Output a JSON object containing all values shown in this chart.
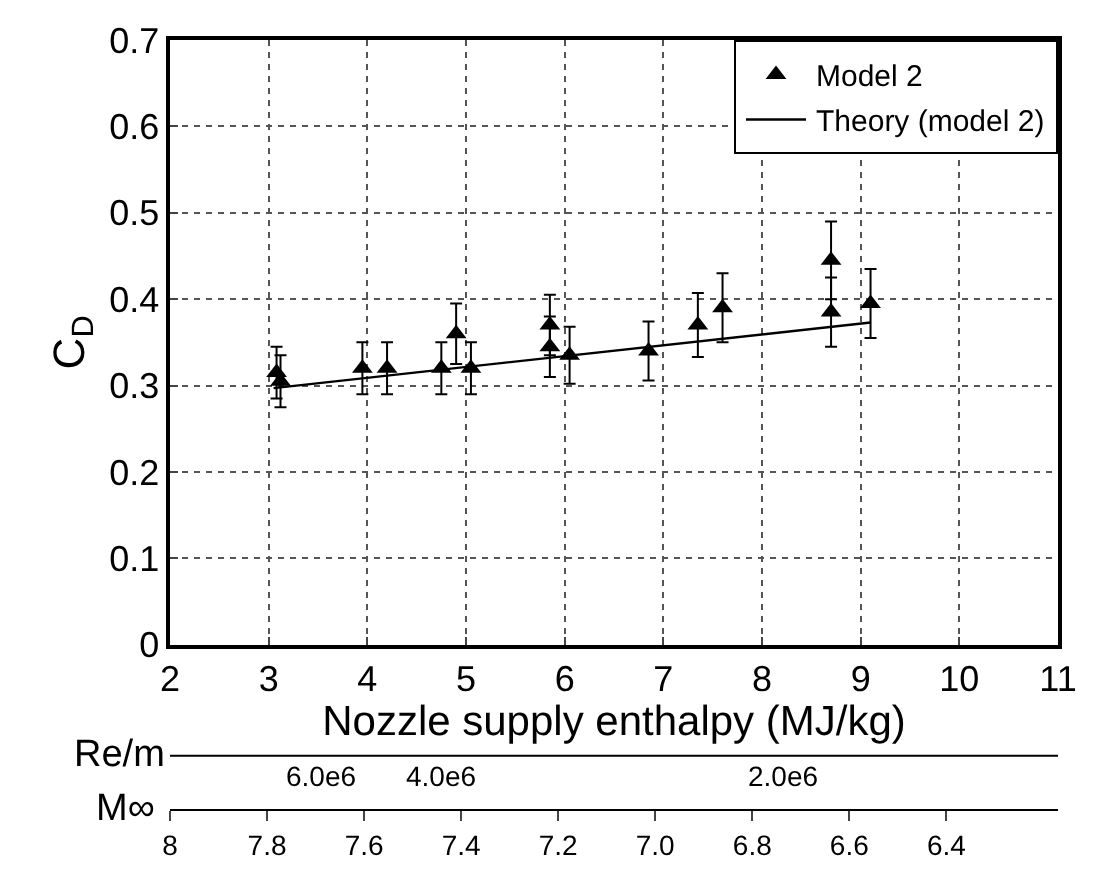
{
  "chart_data": {
    "type": "scatter",
    "xlabel": "Nozzle supply enthalpy (MJ/kg)",
    "ylabel": "C$_{D}$",
    "xlim": [
      2,
      11
    ],
    "xticks": [
      2,
      3,
      4,
      5,
      6,
      7,
      8,
      9,
      10,
      11
    ],
    "ylim": [
      0,
      0.7
    ],
    "yticks": [
      0,
      0.1,
      0.2,
      0.3,
      0.4,
      0.5,
      0.6,
      0.7
    ],
    "x2label": "M∞",
    "x2lim": [
      8.0,
      6.17
    ],
    "x2ticks": [
      8,
      7.8,
      7.6,
      7.4,
      7.2,
      {
        "value": 7.0,
        "label": "7.0"
      },
      6.8,
      6.6,
      6.4
    ],
    "annotations": [
      "Re/m",
      "6.0e6",
      "4.0e6",
      "2.0e6"
    ],
    "grid": true,
    "legend": "top right",
    "marker": "triangle",
    "series": [
      {
        "name": "Model 2",
        "color": "#000000",
        "x": [
          3.08,
          3.12,
          3.95,
          4.2,
          4.75,
          4.9,
          5.05,
          5.85,
          5.85,
          6.05,
          6.85,
          7.35,
          7.6,
          8.7,
          8.7,
          9.1
        ],
        "values": [
          0.315,
          0.305,
          0.32,
          0.32,
          0.32,
          0.36,
          0.32,
          0.37,
          0.345,
          0.335,
          0.34,
          0.37,
          0.39,
          0.445,
          0.385,
          0.395
        ],
        "errors": [
          0.03,
          0.03,
          0.03,
          0.03,
          0.03,
          0.035,
          0.03,
          0.035,
          0.035,
          0.033,
          0.034,
          0.037,
          0.04,
          0.045,
          0.04,
          0.04
        ]
      },
      {
        "name": "Theory (model 2)",
        "type": "line",
        "marker": "none",
        "line_style": "solid",
        "color": "#000000",
        "x": [
          3.05,
          9.1
        ],
        "values": [
          0.297,
          0.373
        ]
      }
    ]
  }
}
